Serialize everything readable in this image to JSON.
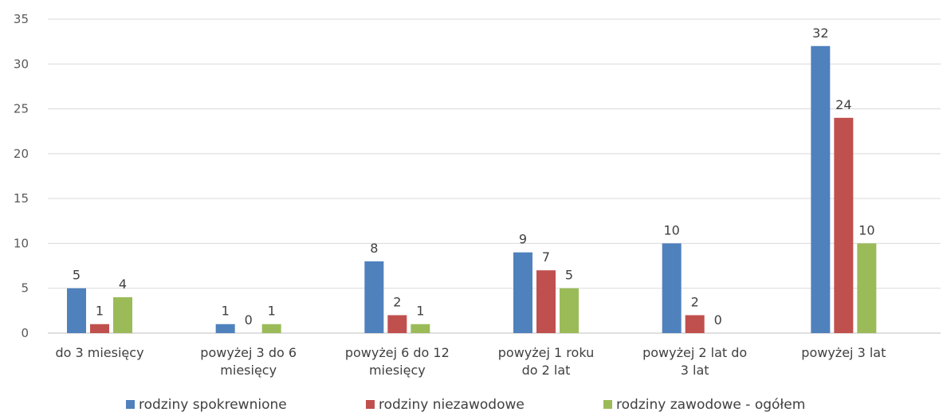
{
  "chart_data": {
    "type": "bar",
    "title": "",
    "xlabel": "",
    "ylabel": "",
    "ylim": [
      0,
      35
    ],
    "yticks": [
      0,
      5,
      10,
      15,
      20,
      25,
      30,
      35
    ],
    "grid": true,
    "legend_position": "bottom",
    "categories": [
      [
        "do 3 miesięcy"
      ],
      [
        "powyżej 3 do 6",
        "miesięcy"
      ],
      [
        "powyżej 6 do 12",
        "miesięcy"
      ],
      [
        "powyżej 1 roku",
        "do 2 lat"
      ],
      [
        "powyżej 2 lat do",
        "3 lat"
      ],
      [
        "powyżej 3 lat"
      ]
    ],
    "series": [
      {
        "name": "rodziny spokrewnione",
        "color": "#4f81bd",
        "values": [
          5,
          1,
          8,
          9,
          10,
          32
        ]
      },
      {
        "name": "rodziny niezawodowe",
        "color": "#c0504d",
        "values": [
          1,
          0,
          2,
          7,
          2,
          24
        ]
      },
      {
        "name": "rodziny zawodowe - ogółem",
        "color": "#9bbb59",
        "values": [
          4,
          1,
          1,
          5,
          0,
          10
        ]
      }
    ]
  }
}
